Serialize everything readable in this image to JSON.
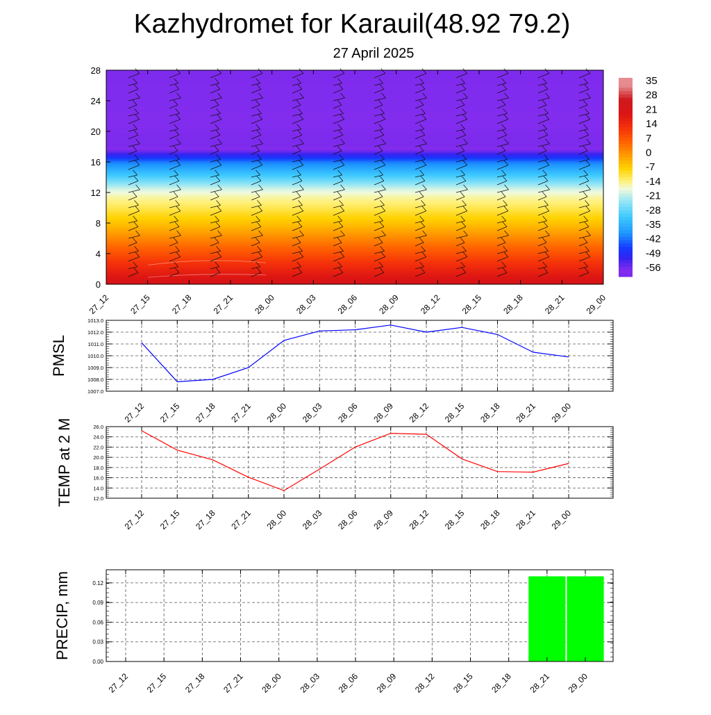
{
  "title": "Kazhydromet for Karauil(48.92 79.2)",
  "subtitle": "27 April 2025",
  "chart_data": [
    {
      "type": "heatmap",
      "x": [
        "27_12",
        "27_15",
        "27_18",
        "27_21",
        "28_00",
        "28_03",
        "28_06",
        "28_09",
        "28_12",
        "28_15",
        "28_18",
        "28_21",
        "29_00"
      ],
      "y_ticks": [
        0,
        4,
        8,
        12,
        16,
        20,
        24,
        28
      ],
      "ylim": [
        0,
        28
      ],
      "colorbar_labels": [
        "35",
        "28",
        "21",
        "14",
        "7",
        "0",
        "-7",
        "-14",
        "-21",
        "-28",
        "-35",
        "-42",
        "-49",
        "-56"
      ],
      "profile": {
        "levels": [
          0,
          2,
          4,
          6,
          8,
          10,
          11.5,
          12.5,
          14,
          16,
          17.5,
          18.5,
          20,
          22,
          24,
          26,
          28
        ],
        "values": [
          24,
          17,
          10,
          3,
          -4,
          -10,
          -14,
          -18,
          -28,
          -40,
          -55,
          -59,
          -57,
          -56,
          -57,
          -57,
          -58
        ]
      },
      "wind_barbs": true
    },
    {
      "type": "line",
      "ylabel": "PMSL",
      "x": [
        "27_12",
        "27_15",
        "27_18",
        "27_21",
        "28_00",
        "28_03",
        "28_06",
        "28_09",
        "28_12",
        "28_15",
        "28_18",
        "28_21",
        "29_00"
      ],
      "values": [
        1011.1,
        1007.8,
        1008.0,
        1009.0,
        1011.3,
        1012.1,
        1012.2,
        1012.6,
        1012.0,
        1012.4,
        1011.8,
        1010.3,
        1009.9
      ],
      "ylim": [
        1007.0,
        1013.0
      ],
      "y_ticks": [
        "1007.0",
        "1008.0",
        "1009.0",
        "1010.0",
        "1011.0",
        "1012.0",
        "1013.0"
      ],
      "color": "#0000ff",
      "grid": true
    },
    {
      "type": "line",
      "ylabel": "TEMP at 2 M",
      "x": [
        "27_12",
        "27_15",
        "27_18",
        "27_21",
        "28_00",
        "28_03",
        "28_06",
        "28_09",
        "28_12",
        "28_15",
        "28_18",
        "28_21",
        "29_00"
      ],
      "values": [
        25.2,
        21.4,
        19.5,
        16.1,
        13.5,
        17.7,
        22.0,
        24.7,
        24.5,
        19.7,
        17.2,
        17.1,
        18.8
      ],
      "ylim": [
        12.0,
        26.0
      ],
      "y_ticks": [
        "12.0",
        "14.0",
        "16.0",
        "18.0",
        "20.0",
        "22.0",
        "24.0",
        "26.0"
      ],
      "color": "#ff0000",
      "grid": true
    },
    {
      "type": "bar",
      "ylabel": "PRECIP, mm",
      "x": [
        "27_12",
        "27_15",
        "27_18",
        "27_21",
        "28_00",
        "28_03",
        "28_06",
        "28_09",
        "28_12",
        "28_15",
        "28_18",
        "28_21",
        "29_00"
      ],
      "values": [
        0,
        0,
        0,
        0,
        0,
        0,
        0,
        0,
        0,
        0,
        0,
        0.13,
        0.13
      ],
      "ylim": [
        0,
        0.14
      ],
      "y_ticks": [
        "0.00",
        "0.03",
        "0.06",
        "0.09",
        "0.12"
      ],
      "color": "#00ff00",
      "grid": true
    }
  ]
}
